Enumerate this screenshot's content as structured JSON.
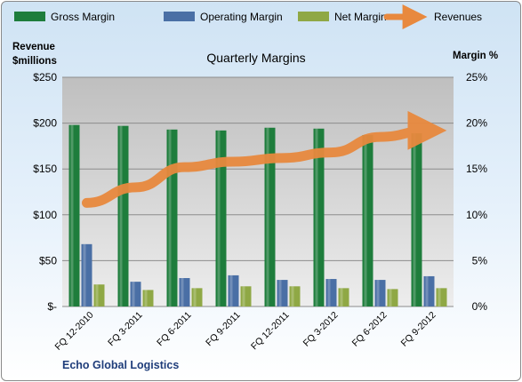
{
  "chart_data": {
    "type": "bar",
    "title": "Quarterly Margins",
    "company": "Echo Global Logistics",
    "left_axis": {
      "label_line1": "Revenue",
      "label_line2": "$millions",
      "range": [
        0,
        250
      ],
      "ticks": [
        0,
        50,
        100,
        150,
        200,
        250
      ],
      "tick_labels": [
        "$-",
        "$50",
        "$100",
        "$150",
        "$200",
        "$250"
      ]
    },
    "right_axis": {
      "label": "Margin %",
      "range": [
        0,
        25
      ],
      "ticks": [
        0,
        5,
        10,
        15,
        20,
        25
      ],
      "tick_labels": [
        "0%",
        "5%",
        "10%",
        "15%",
        "20%",
        "25%"
      ]
    },
    "categories": [
      "FQ 12-2010",
      "FQ 3-2011",
      "FQ 6-2011",
      "FQ 9-2011",
      "FQ 12-2011",
      "FQ 3-2012",
      "FQ 6-2012",
      "FQ 9-2012"
    ],
    "series": [
      {
        "name": "Gross Margin",
        "kind": "bar",
        "axis": "right",
        "color": "#1e7d3c",
        "values": [
          19.8,
          19.7,
          19.3,
          19.2,
          19.5,
          19.4,
          18.7,
          18.9
        ]
      },
      {
        "name": "Operating Margin",
        "kind": "bar",
        "axis": "right",
        "color": "#4a6fa5",
        "values": [
          6.8,
          2.7,
          3.1,
          3.4,
          2.9,
          3.0,
          2.9,
          3.3
        ]
      },
      {
        "name": "Net Margin",
        "kind": "bar",
        "axis": "right",
        "color": "#8fa845",
        "values": [
          2.4,
          1.8,
          2.0,
          2.2,
          2.2,
          2.0,
          1.9,
          2.0
        ]
      },
      {
        "name": "Revenues",
        "kind": "line",
        "axis": "left",
        "color": "#e8893e",
        "values": [
          113,
          130,
          152,
          158,
          162,
          168,
          185,
          192
        ]
      }
    ],
    "grid": true,
    "legend": "top"
  }
}
